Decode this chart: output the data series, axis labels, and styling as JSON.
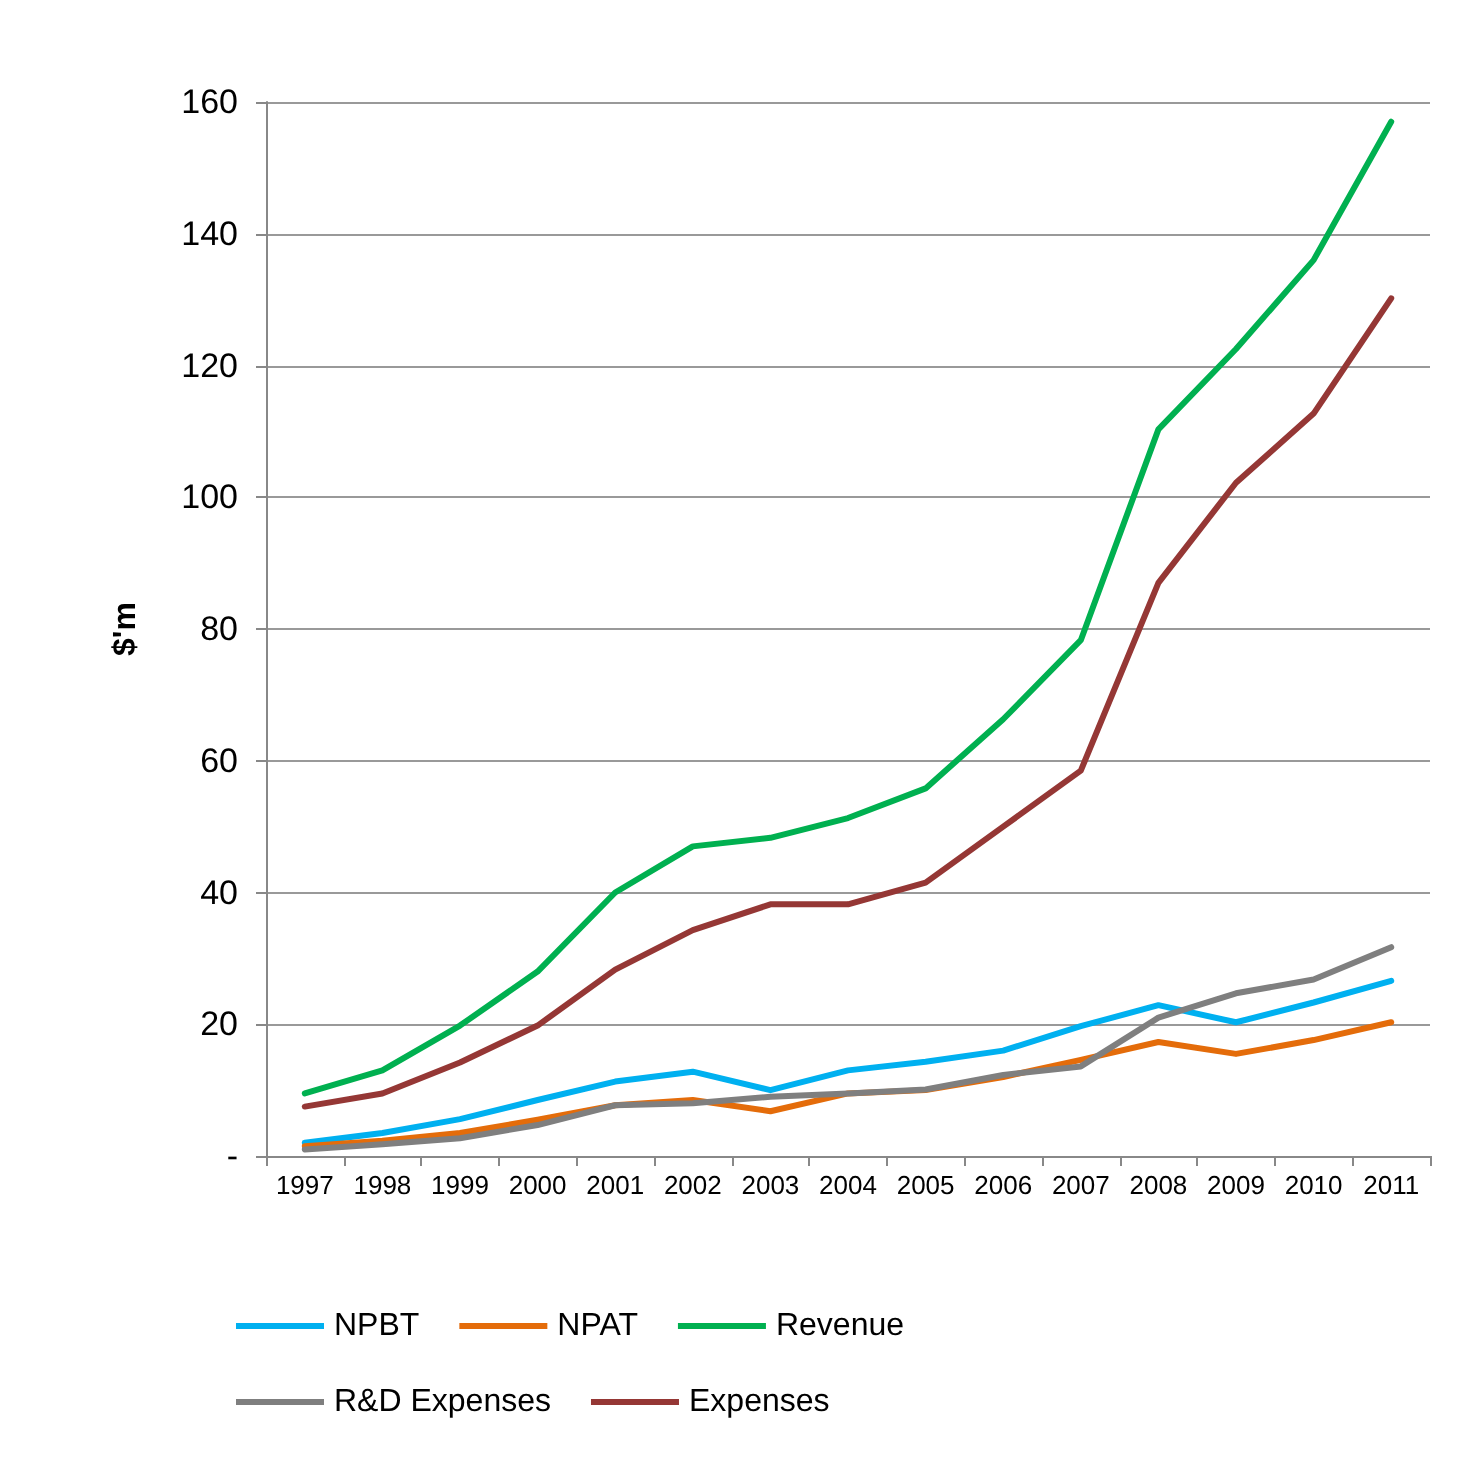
{
  "chart_data": {
    "type": "line",
    "ylabel": "$'m",
    "categories": [
      "1997",
      "1998",
      "1999",
      "2000",
      "2001",
      "2002",
      "2003",
      "2004",
      "2005",
      "2006",
      "2007",
      "2008",
      "2009",
      "2010",
      "2011"
    ],
    "series": [
      {
        "name": "NPBT",
        "color": "#00b0f0",
        "values": [
          2,
          3.5,
          5.6,
          8.5,
          11.3,
          12.8,
          10,
          13,
          14.3,
          16,
          19.7,
          22.9,
          20.3,
          23.3,
          26.6
        ]
      },
      {
        "name": "NPAT",
        "color": "#e46c0a",
        "values": [
          1.5,
          2.3,
          3.5,
          5.5,
          7.7,
          8.5,
          6.8,
          9.5,
          10,
          12,
          14.6,
          17.3,
          15.5,
          17.6,
          20.3
        ]
      },
      {
        "name": "Revenue",
        "color": "#00b050",
        "values": [
          9.5,
          13,
          19.8,
          28,
          40,
          47,
          48.3,
          51.3,
          55.8,
          66.3,
          78.3,
          110.3,
          122.5,
          136,
          157
        ]
      },
      {
        "name": "R&D Expenses",
        "color": "#7f7f7f",
        "values": [
          1,
          1.8,
          2.7,
          4.7,
          7.7,
          8,
          9,
          9.5,
          10.1,
          12.3,
          13.6,
          21,
          24.7,
          26.8,
          31.7
        ]
      },
      {
        "name": "Expenses",
        "color": "#953735",
        "values": [
          7.5,
          9.5,
          14.2,
          19.8,
          28.3,
          34.3,
          38.2,
          38.2,
          41.5,
          50,
          58.5,
          87,
          102.2,
          112.7,
          130.2
        ]
      }
    ],
    "ylim": [
      0,
      160
    ],
    "yticks": [
      {
        "value": 0,
        "label": "-"
      },
      20,
      40,
      60,
      80,
      100,
      120,
      140,
      160
    ],
    "grid": "y",
    "legend": "bottom",
    "marker": "none",
    "line_style": "solid"
  }
}
